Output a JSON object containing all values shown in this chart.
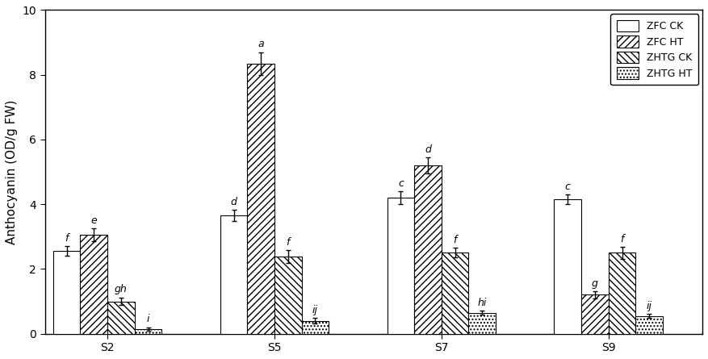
{
  "categories": [
    "S2",
    "S5",
    "S7",
    "S9"
  ],
  "series": {
    "ZFC CK": [
      2.55,
      3.65,
      4.2,
      4.15
    ],
    "ZFC HT": [
      3.05,
      8.35,
      5.2,
      1.2
    ],
    "ZHTG CK": [
      1.0,
      2.38,
      2.5,
      2.5
    ],
    "ZHTG HT": [
      0.15,
      0.4,
      0.65,
      0.55
    ]
  },
  "errors": {
    "ZFC CK": [
      0.15,
      0.18,
      0.2,
      0.15
    ],
    "ZFC HT": [
      0.2,
      0.35,
      0.25,
      0.1
    ],
    "ZHTG CK": [
      0.12,
      0.2,
      0.15,
      0.18
    ],
    "ZHTG HT": [
      0.05,
      0.08,
      0.07,
      0.07
    ]
  },
  "labels": {
    "ZFC CK": [
      "f",
      "d",
      "c",
      "c"
    ],
    "ZFC HT": [
      "e",
      "a",
      "d",
      "g"
    ],
    "ZHTG CK": [
      "gh",
      "f",
      "f",
      "f"
    ],
    "ZHTG HT": [
      "i",
      "ij",
      "hi",
      "ij"
    ]
  },
  "ylim": [
    0,
    10
  ],
  "yticks": [
    0,
    2,
    4,
    6,
    8,
    10
  ],
  "ylabel": "Anthocyanin (OD/g FW)",
  "legend_labels": [
    "ZFC CK",
    "ZFC HT",
    "ZHTG CK",
    "ZHTG HT"
  ],
  "bar_width": 0.13,
  "group_positions": [
    0.3,
    1.1,
    1.9,
    2.7
  ],
  "xlim": [
    0.0,
    3.15
  ],
  "hatches": [
    "",
    "////",
    "\\\\\\\\",
    "...."
  ],
  "label_fontsize": 9,
  "axis_fontsize": 11,
  "tick_fontsize": 10,
  "facecolor": "white",
  "edgecolor": "black"
}
